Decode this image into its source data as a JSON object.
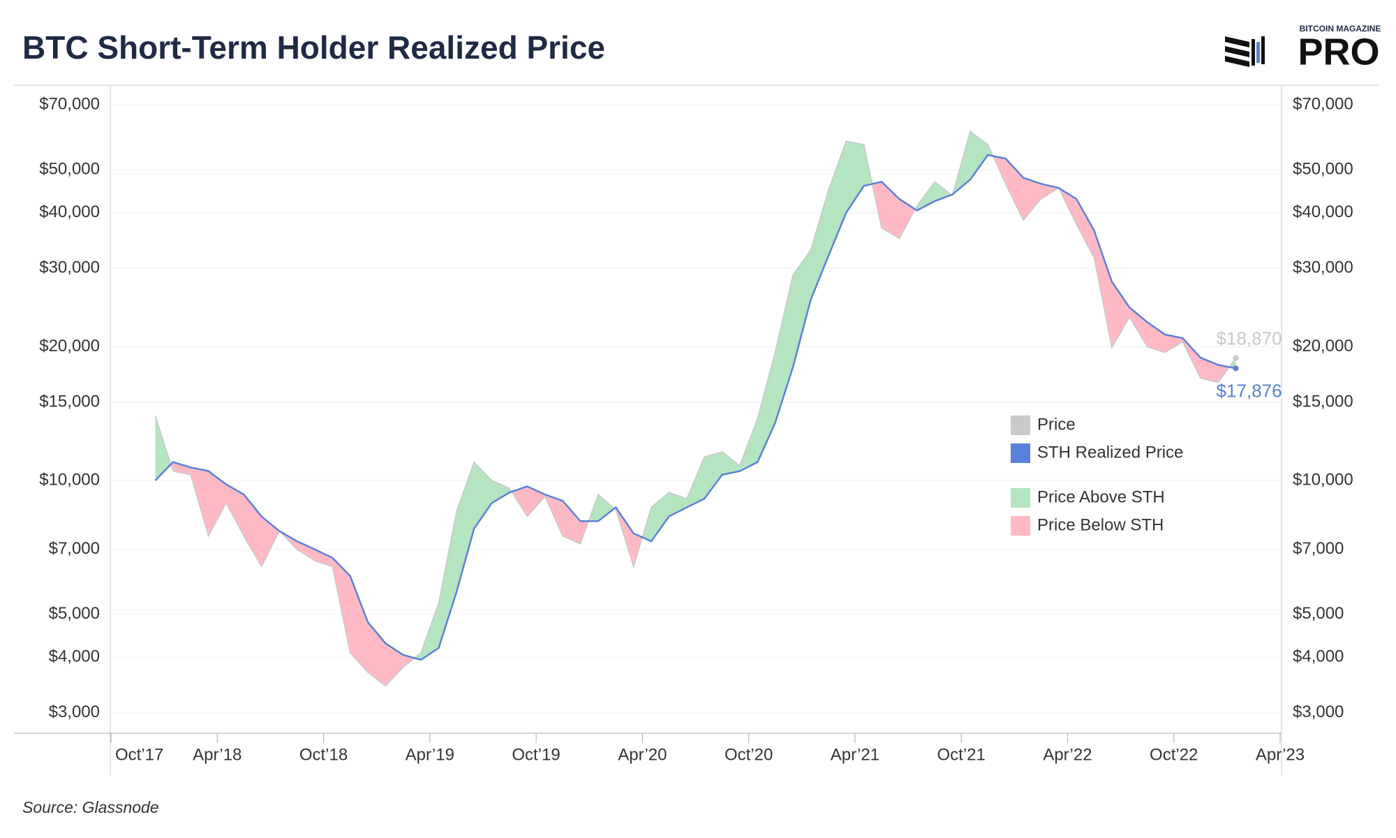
{
  "chart_data": {
    "type": "line",
    "title": "BTC Short-Term Holder Realized Price",
    "brand": [
      "BITCOIN MAGAZINE",
      "PRO"
    ],
    "source": "Source: Glassnode",
    "log_scale": true,
    "grid": true,
    "legend": "right",
    "x": [
      "2017-12",
      "2018-01",
      "2018-02",
      "2018-03",
      "2018-04",
      "2018-05",
      "2018-06",
      "2018-07",
      "2018-08",
      "2018-09",
      "2018-10",
      "2018-11",
      "2018-12",
      "2019-01",
      "2019-02",
      "2019-03",
      "2019-04",
      "2019-05",
      "2019-06",
      "2019-07",
      "2019-08",
      "2019-09",
      "2019-10",
      "2019-11",
      "2019-12",
      "2020-01",
      "2020-02",
      "2020-03",
      "2020-04",
      "2020-05",
      "2020-06",
      "2020-07",
      "2020-08",
      "2020-09",
      "2020-10",
      "2020-11",
      "2020-12",
      "2021-01",
      "2021-02",
      "2021-03",
      "2021-04",
      "2021-05",
      "2021-06",
      "2021-07",
      "2021-08",
      "2021-09",
      "2021-10",
      "2021-11",
      "2021-12",
      "2022-01",
      "2022-02",
      "2022-03",
      "2022-04",
      "2022-05",
      "2022-06",
      "2022-07",
      "2022-08",
      "2022-09",
      "2022-10",
      "2022-11",
      "2022-12",
      "2023-01"
    ],
    "series": [
      {
        "name": "Price",
        "color": "#c9c9c9",
        "values": [
          14000,
          10500,
          10300,
          7500,
          8900,
          7500,
          6400,
          7700,
          7000,
          6600,
          6400,
          4100,
          3700,
          3450,
          3800,
          4100,
          5300,
          8500,
          11000,
          10000,
          9600,
          8300,
          9200,
          7500,
          7200,
          9300,
          8600,
          6400,
          8700,
          9400,
          9100,
          11300,
          11600,
          10800,
          13800,
          19500,
          29000,
          33000,
          45000,
          58000,
          57000,
          37000,
          35000,
          41500,
          47000,
          43800,
          61000,
          57000,
          46500,
          38500,
          43000,
          45500,
          37700,
          31700,
          19900,
          23300,
          20000,
          19400,
          20500,
          17000,
          16600,
          18870
        ],
        "value_labels": [
          null,
          null,
          null,
          null,
          null,
          null,
          null,
          null,
          null,
          null,
          null,
          null,
          null,
          null,
          null,
          null,
          null,
          null,
          null,
          null,
          null,
          null,
          null,
          null,
          null,
          null,
          null,
          null,
          null,
          null,
          null,
          null,
          null,
          null,
          null,
          null,
          null,
          null,
          null,
          null,
          null,
          null,
          null,
          null,
          null,
          null,
          null,
          null,
          null,
          null,
          null,
          null,
          null,
          null,
          null,
          null,
          null,
          null,
          null,
          null,
          null,
          "$18,870"
        ]
      },
      {
        "name": "STH Realized Price",
        "color": "#5b80d9",
        "values": [
          10000,
          11000,
          10700,
          10500,
          9800,
          9300,
          8300,
          7700,
          7300,
          7000,
          6700,
          6100,
          4800,
          4300,
          4050,
          3950,
          4200,
          5600,
          7800,
          8900,
          9400,
          9700,
          9300,
          9000,
          8100,
          8100,
          8700,
          7600,
          7300,
          8300,
          8700,
          9100,
          10300,
          10500,
          11000,
          13500,
          18000,
          25500,
          32000,
          40000,
          46000,
          47000,
          43000,
          40500,
          42500,
          44000,
          47500,
          54000,
          53000,
          48000,
          46500,
          45500,
          43000,
          36500,
          28000,
          24500,
          22700,
          21300,
          20900,
          18900,
          18200,
          17876
        ],
        "value_labels": [
          null,
          null,
          null,
          null,
          null,
          null,
          null,
          null,
          null,
          null,
          null,
          null,
          null,
          null,
          null,
          null,
          null,
          null,
          null,
          null,
          null,
          null,
          null,
          null,
          null,
          null,
          null,
          null,
          null,
          null,
          null,
          null,
          null,
          null,
          null,
          null,
          null,
          null,
          null,
          null,
          null,
          null,
          null,
          null,
          null,
          null,
          null,
          null,
          null,
          null,
          null,
          null,
          null,
          null,
          null,
          null,
          null,
          null,
          null,
          null,
          null,
          "$17,876"
        ]
      }
    ],
    "fills": [
      {
        "name": "Price Above STH",
        "color": "#b5e4c0"
      },
      {
        "name": "Price Below STH",
        "color": "#ffb9c4"
      }
    ],
    "xlim": [
      "2017-10",
      "2023-04"
    ],
    "xticks": [
      {
        "value": "2017-10",
        "label": "Oct’17"
      },
      {
        "value": "2018-04",
        "label": "Apr’18"
      },
      {
        "value": "2018-10",
        "label": "Oct’18"
      },
      {
        "value": "2019-04",
        "label": "Apr’19"
      },
      {
        "value": "2019-10",
        "label": "Oct’19"
      },
      {
        "value": "2020-04",
        "label": "Apr’20"
      },
      {
        "value": "2020-10",
        "label": "Oct’20"
      },
      {
        "value": "2021-04",
        "label": "Apr’21"
      },
      {
        "value": "2021-10",
        "label": "Oct’21"
      },
      {
        "value": "2022-04",
        "label": "Apr’22"
      },
      {
        "value": "2022-10",
        "label": "Oct’22"
      },
      {
        "value": "2023-04",
        "label": "Apr’23"
      }
    ],
    "ylim": [
      2700,
      77500
    ],
    "yticks": [
      {
        "value": 3000,
        "label": "$3,000"
      },
      {
        "value": 4000,
        "label": "$4,000"
      },
      {
        "value": 5000,
        "label": "$5,000"
      },
      {
        "value": 7000,
        "label": "$7,000"
      },
      {
        "value": 10000,
        "label": "$10,000"
      },
      {
        "value": 15000,
        "label": "$15,000"
      },
      {
        "value": 20000,
        "label": "$20,000"
      },
      {
        "value": 30000,
        "label": "$30,000"
      },
      {
        "value": 40000,
        "label": "$40,000"
      },
      {
        "value": 50000,
        "label": "$50,000"
      },
      {
        "value": 70000,
        "label": "$70,000"
      }
    ]
  }
}
